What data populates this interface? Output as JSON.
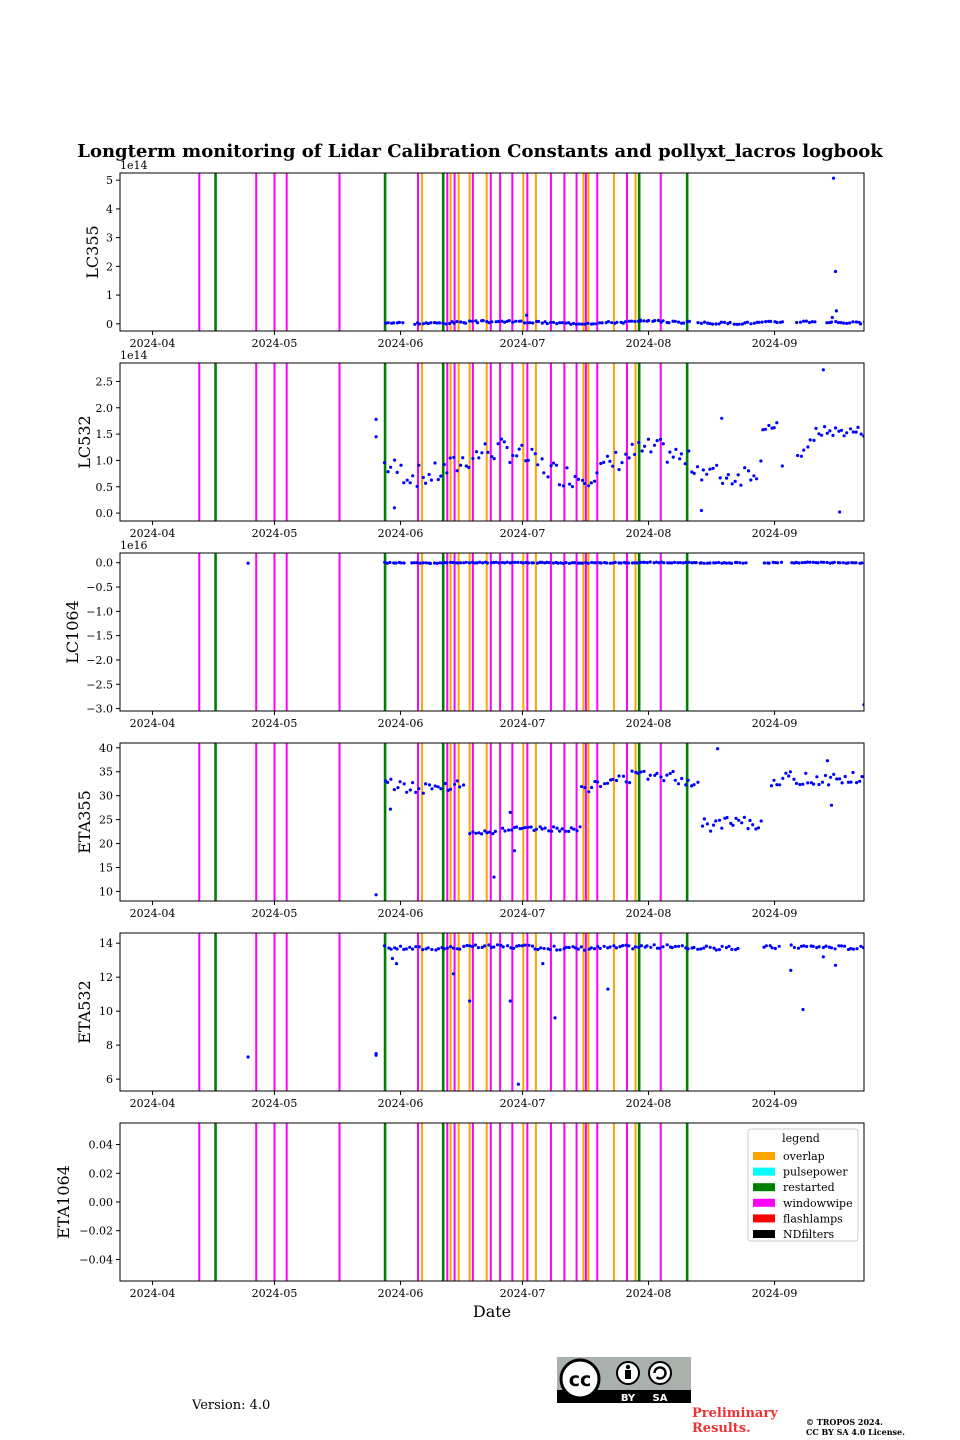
{
  "page": {
    "title": "Longterm monitoring of Lidar Calibration Constants and pollyxt_lacros logbook",
    "version": "Version: 4.0",
    "preliminary_line1": "Preliminary",
    "preliminary_line2": "Results.",
    "copyright_line1": "© TROPOS 2024.",
    "copyright_line2": "CC BY SA 4.0 License.",
    "cc_badge": {
      "cc": "cc",
      "by": "BY",
      "sa": "SA"
    }
  },
  "chart_data": {
    "type": "scatter",
    "xlabel": "Date",
    "x_range_days": [
      -8,
      175
    ],
    "x_ticks": [
      {
        "label": "2024-04",
        "day": 0
      },
      {
        "label": "2024-05",
        "day": 30
      },
      {
        "label": "2024-06",
        "day": 61
      },
      {
        "label": "2024-07",
        "day": 91
      },
      {
        "label": "2024-08",
        "day": 122
      },
      {
        "label": "2024-09",
        "day": 153
      }
    ],
    "events": [
      {
        "type": "windowwipe",
        "day": 11.5
      },
      {
        "type": "restarted",
        "day": 15.5
      },
      {
        "type": "windowwipe",
        "day": 25.5
      },
      {
        "type": "windowwipe",
        "day": 30
      },
      {
        "type": "windowwipe",
        "day": 33
      },
      {
        "type": "windowwipe",
        "day": 46
      },
      {
        "type": "restarted",
        "day": 57.2
      },
      {
        "type": "windowwipe",
        "day": 65.3
      },
      {
        "type": "overlap",
        "day": 66.3
      },
      {
        "type": "restarted",
        "day": 71.5
      },
      {
        "type": "windowwipe",
        "day": 72.5
      },
      {
        "type": "overlap",
        "day": 73.3
      },
      {
        "type": "windowwipe",
        "day": 74.3
      },
      {
        "type": "overlap",
        "day": 75.3
      },
      {
        "type": "overlap",
        "day": 78
      },
      {
        "type": "windowwipe",
        "day": 78.8
      },
      {
        "type": "overlap",
        "day": 82.2
      },
      {
        "type": "windowwipe",
        "day": 83.2
      },
      {
        "type": "windowwipe",
        "day": 85.5
      },
      {
        "type": "windowwipe",
        "day": 88.5
      },
      {
        "type": "overlap",
        "day": 91.2
      },
      {
        "type": "windowwipe",
        "day": 92.2
      },
      {
        "type": "overlap",
        "day": 94.3
      },
      {
        "type": "windowwipe",
        "day": 98
      },
      {
        "type": "windowwipe",
        "day": 101.3
      },
      {
        "type": "windowwipe",
        "day": 104.3
      },
      {
        "type": "overlap",
        "day": 106
      },
      {
        "type": "windowwipe",
        "day": 106.6
      },
      {
        "type": "overlap",
        "day": 107.2
      },
      {
        "type": "windowwipe",
        "day": 109.4
      },
      {
        "type": "overlap",
        "day": 113.5
      },
      {
        "type": "windowwipe",
        "day": 116.7
      },
      {
        "type": "overlap",
        "day": 118.8
      },
      {
        "type": "restarted",
        "day": 119.7
      },
      {
        "type": "windowwipe",
        "day": 125
      },
      {
        "type": "restarted",
        "day": 131.5
      }
    ],
    "panels": [
      {
        "ylabel": "LC355",
        "exponent": "1e14",
        "ylim": [
          -0.25,
          5.25
        ],
        "yticks": [
          {
            "v": 0,
            "label": "0"
          },
          {
            "v": 1,
            "label": "1"
          },
          {
            "v": 2,
            "label": "2"
          },
          {
            "v": 3,
            "label": "3"
          },
          {
            "v": 4,
            "label": "4"
          },
          {
            "v": 5,
            "label": "5"
          }
        ],
        "generator": {
          "start": 57,
          "end": 175,
          "base": 0.05,
          "amp": 0.03,
          "noise": 0.04,
          "density": 1.4,
          "gaps": [
            [
              62,
              64
            ],
            [
              132,
              134
            ],
            [
              155,
              158
            ],
            [
              163,
              165
            ]
          ],
          "seed": 3
        },
        "extra_points": [
          [
            167.5,
            5.07
          ],
          [
            168,
            1.82
          ],
          [
            168.2,
            0.45
          ],
          [
            167.2,
            0.22
          ],
          [
            92,
            0.3
          ],
          [
            120,
            0.13
          ]
        ]
      },
      {
        "ylabel": "LC532",
        "exponent": "1e14",
        "ylim": [
          -0.15,
          2.85
        ],
        "yticks": [
          {
            "v": 0,
            "label": "0.0"
          },
          {
            "v": 0.5,
            "label": "0.5"
          },
          {
            "v": 1.0,
            "label": "1.0"
          },
          {
            "v": 1.5,
            "label": "1.5"
          },
          {
            "v": 2.0,
            "label": "2.0"
          },
          {
            "v": 2.5,
            "label": "2.5"
          }
        ],
        "generator": {
          "start": 57,
          "end": 175,
          "base": 0.95,
          "amp": 0.25,
          "noise": 0.22,
          "density": 1.3,
          "gaps": [
            [
              150,
              152
            ],
            [
              155,
              158
            ]
          ],
          "seed": 7
        },
        "segments": [
          [
            150,
            154,
            1.65,
            0.08
          ],
          [
            163,
            175,
            1.55,
            0.1
          ]
        ],
        "extra_points": [
          [
            165,
            2.72
          ],
          [
            55,
            1.78
          ],
          [
            55,
            1.45
          ],
          [
            59.5,
            0.1
          ],
          [
            135,
            0.05
          ],
          [
            169,
            0.02
          ],
          [
            140,
            1.8
          ]
        ]
      },
      {
        "ylabel": "LC1064",
        "exponent": "1e16",
        "ylim": [
          -3.05,
          0.2
        ],
        "yticks": [
          {
            "v": 0,
            "label": "0.0"
          },
          {
            "v": -0.5,
            "label": "−0.5"
          },
          {
            "v": -1.0,
            "label": "−1.0"
          },
          {
            "v": -1.5,
            "label": "−1.5"
          },
          {
            "v": -2.0,
            "label": "−2.0"
          },
          {
            "v": -2.5,
            "label": "−2.5"
          },
          {
            "v": -3.0,
            "label": "−3.0"
          }
        ],
        "generator": {
          "start": 57,
          "end": 175,
          "base": 0.0,
          "amp": 0.005,
          "noise": 0.01,
          "density": 1.5,
          "gaps": [
            [
              62,
              63
            ],
            [
              146,
              150
            ],
            [
              155,
              157
            ]
          ],
          "seed": 11
        },
        "extra_points": [
          [
            23.5,
            -0.01
          ],
          [
            175,
            -2.92
          ]
        ]
      },
      {
        "ylabel": "ETA355",
        "exponent": "",
        "ylim": [
          8,
          41
        ],
        "yticks": [
          {
            "v": 10,
            "label": "10"
          },
          {
            "v": 15,
            "label": "15"
          },
          {
            "v": 20,
            "label": "20"
          },
          {
            "v": 25,
            "label": "25"
          },
          {
            "v": 30,
            "label": "30"
          },
          {
            "v": 35,
            "label": "35"
          },
          {
            "v": 40,
            "label": "40"
          }
        ],
        "generator": {
          "start": 57,
          "end": 134,
          "base": 33,
          "amp": 1.5,
          "noise": 1.2,
          "density": 1.3,
          "gaps": [
            [
              77,
              78
            ],
            [
              85,
              86
            ]
          ],
          "seed": 13
        },
        "segments": [
          [
            78,
            85,
            22.5,
            0.6
          ],
          [
            86,
            105,
            23,
            0.5
          ],
          [
            135,
            150,
            24,
            1.5
          ],
          [
            152,
            175,
            33.5,
            1.5
          ]
        ],
        "extra_points": [
          [
            139,
            39.8
          ],
          [
            166,
            37.3
          ],
          [
            84,
            13
          ],
          [
            89,
            18.5
          ],
          [
            88,
            26.5
          ],
          [
            55,
            9.3
          ],
          [
            58.5,
            27.2
          ],
          [
            167,
            28
          ]
        ]
      },
      {
        "ylabel": "ETA532",
        "exponent": "",
        "ylim": [
          5.3,
          14.6
        ],
        "yticks": [
          {
            "v": 6,
            "label": "6"
          },
          {
            "v": 8,
            "label": "8"
          },
          {
            "v": 10,
            "label": "10"
          },
          {
            "v": 12,
            "label": "12"
          },
          {
            "v": 14,
            "label": "14"
          }
        ],
        "generator": {
          "start": 57,
          "end": 175,
          "base": 13.75,
          "amp": 0.05,
          "noise": 0.12,
          "density": 1.3,
          "gaps": [
            [
              144,
              150
            ],
            [
              154,
              157
            ]
          ],
          "seed": 17
        },
        "extra_points": [
          [
            23.5,
            7.3
          ],
          [
            55,
            7.5
          ],
          [
            55,
            7.4
          ],
          [
            88,
            10.6
          ],
          [
            90,
            5.7
          ],
          [
            96,
            12.8
          ],
          [
            99,
            9.6
          ],
          [
            112,
            11.3
          ],
          [
            78,
            10.6
          ],
          [
            157,
            12.4
          ],
          [
            160,
            10.1
          ],
          [
            165,
            13.2
          ],
          [
            168,
            12.7
          ],
          [
            59,
            13.1
          ],
          [
            60,
            12.8
          ],
          [
            74,
            12.2
          ]
        ]
      },
      {
        "ylabel": "ETA1064",
        "exponent": "",
        "ylim": [
          -0.055,
          0.055
        ],
        "yticks": [
          {
            "v": -0.04,
            "label": "−0.04"
          },
          {
            "v": -0.02,
            "label": "−0.02"
          },
          {
            "v": 0,
            "label": "0.00"
          },
          {
            "v": 0.02,
            "label": "0.02"
          },
          {
            "v": 0.04,
            "label": "0.04"
          }
        ],
        "generator": null,
        "extra_points": []
      }
    ],
    "legend": {
      "title": "legend",
      "placement": "top-right of last panel",
      "entries": [
        {
          "label": "overlap",
          "color": "#ffa500"
        },
        {
          "label": "pulsepower",
          "color": "#00ffff"
        },
        {
          "label": "restarted",
          "color": "#008000"
        },
        {
          "label": "windowwipe",
          "color": "#ff00ff"
        },
        {
          "label": "flashlamps",
          "color": "#ff0000"
        },
        {
          "label": "NDfilters",
          "color": "#000000"
        }
      ]
    },
    "point_color": "#0000ff"
  }
}
